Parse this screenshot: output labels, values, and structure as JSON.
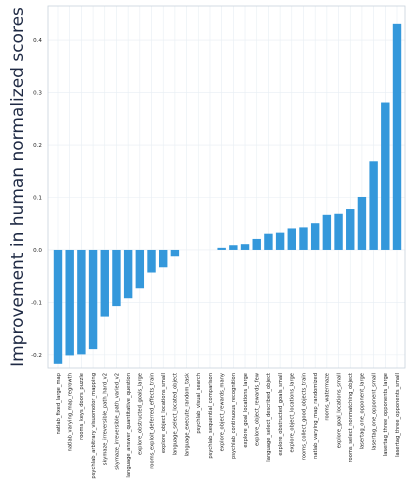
{
  "chart_data": {
    "type": "bar",
    "title": "",
    "xlabel": "",
    "ylabel": "Improvement in human normalized scores",
    "ylim": [
      -0.225,
      0.465
    ],
    "yticks": [
      -0.2,
      -0.1,
      0.0,
      0.1,
      0.2,
      0.3,
      0.4
    ],
    "ytick_labels": [
      "-0.2",
      "-0.1",
      "0.0",
      "0.1",
      "0.2",
      "0.3",
      "0.4"
    ],
    "grid": true,
    "bar_color": "#3498db",
    "categories": [
      "natlab_fixed_large_map",
      "natlab_varying_map_regrowth",
      "rooms_keys_doors_puzzle",
      "psychlab_arbitrary_visuomotor_mapping",
      "skymaze_irreversible_path_hard_v2",
      "skymaze_irreversible_path_varied_v2",
      "language_answer_quantitative_question",
      "explore_obstructed_goals_large",
      "rooms_exploit_deferred_effects_train",
      "explore_object_locations_small",
      "language_select_located_object",
      "language_execute_random_task",
      "psychlab_visual_search",
      "psychlab_sequential_comparison",
      "explore_object_rewards_many",
      "psychlab_continuous_recognition",
      "explore_goal_locations_large",
      "explore_object_rewards_few",
      "language_select_described_object",
      "explore_obstructed_goals_small",
      "explore_object_locations_large",
      "rooms_collect_good_objects_train",
      "natlab_varying_map_randomized",
      "rooms_watermaze",
      "explore_goal_locations_small",
      "rooms_select_nonmatching_object",
      "lasertag_one_opponent_large",
      "lasertag_one_opponent_small",
      "lasertag_three_opponents_large",
      "lasertag_three_opponents_small"
    ],
    "values": [
      -0.217,
      -0.201,
      -0.199,
      -0.189,
      -0.127,
      -0.107,
      -0.092,
      -0.073,
      -0.043,
      -0.033,
      -0.012,
      0.0,
      0.0,
      0.0,
      0.004,
      0.009,
      0.011,
      0.021,
      0.031,
      0.033,
      0.041,
      0.043,
      0.051,
      0.067,
      0.069,
      0.078,
      0.101,
      0.169,
      0.281,
      0.431
    ]
  }
}
